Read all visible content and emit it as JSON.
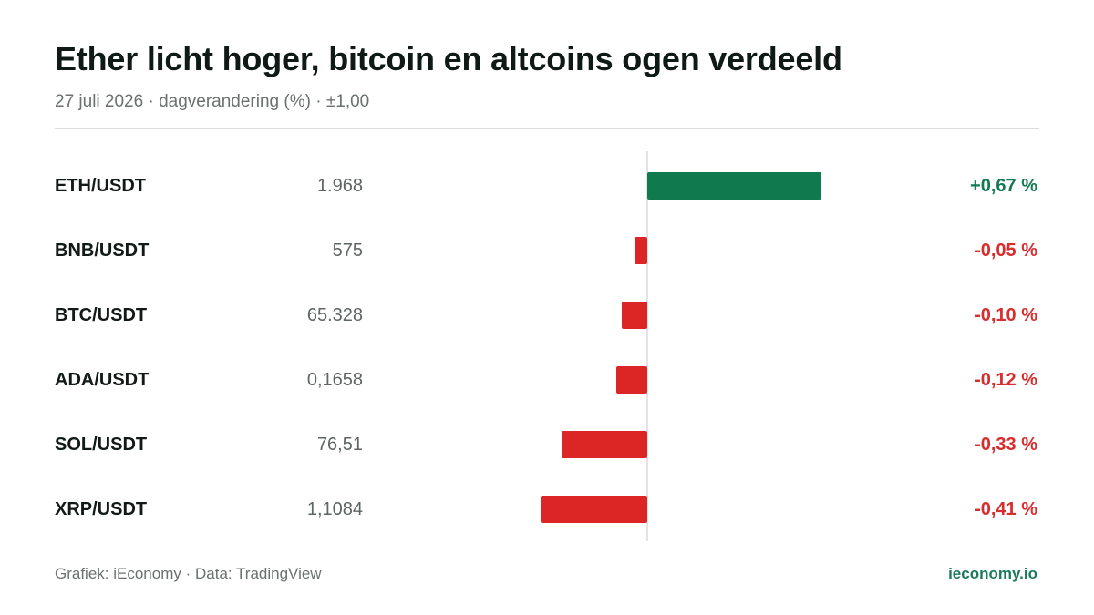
{
  "header": {
    "title": "Ether licht hoger, bitcoin en altcoins ogen verdeeld",
    "subtitle": "27 juli 2026 · dagverandering (%) · ±1,00"
  },
  "footer": {
    "source": "Grafiek: iEconomy · Data: TradingView",
    "brand": "ieconomy.io"
  },
  "colors": {
    "positive": "#0e7a4e",
    "negative": "#dc2626",
    "positive_text": "#137a52",
    "negative_text": "#d92c2c"
  },
  "chart_data": {
    "type": "bar",
    "orientation": "horizontal",
    "title": "Ether licht hoger, bitcoin en altcoins ogen verdeeld",
    "subtitle": "27 juli 2026 · dagverandering (%) · ±1,00",
    "xlim": [
      -1.0,
      1.0
    ],
    "grid": false,
    "categories": [
      "ETH/USDT",
      "BNB/USDT",
      "BTC/USDT",
      "ADA/USDT",
      "SOL/USDT",
      "XRP/USDT"
    ],
    "prices": [
      "1.968",
      "575",
      "65.328",
      "0,1658",
      "76,51",
      "1,1084"
    ],
    "values": [
      0.67,
      -0.05,
      -0.1,
      -0.12,
      -0.33,
      -0.41
    ],
    "value_labels": [
      "+0,67 %",
      "-0,05 %",
      "-0,10 %",
      "-0,12 %",
      "-0,33 %",
      "-0,41 %"
    ]
  }
}
